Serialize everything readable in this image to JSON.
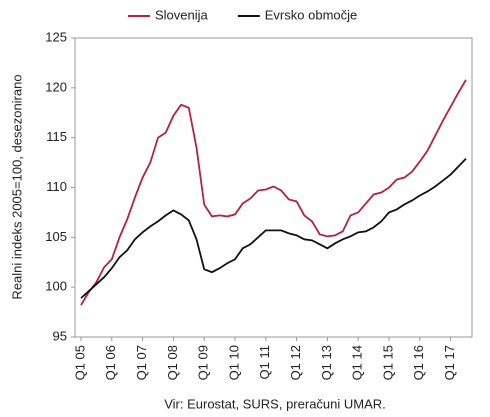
{
  "chart_data": {
    "type": "line",
    "categories": [
      "Q1 05",
      null,
      null,
      null,
      "Q1 06",
      null,
      null,
      null,
      "Q1 07",
      null,
      null,
      null,
      "Q1 08",
      null,
      null,
      null,
      "Q1 09",
      null,
      null,
      null,
      "Q1 10",
      null,
      null,
      null,
      "Q1 11",
      null,
      null,
      null,
      "Q1 12",
      null,
      null,
      null,
      "Q1 13",
      null,
      null,
      null,
      "Q1 14",
      null,
      null,
      null,
      "Q1 15",
      null,
      null,
      null,
      "Q1 16",
      null,
      null,
      null,
      "Q1 17",
      null,
      null
    ],
    "series": [
      {
        "name": "Slovenija",
        "color": "#b5213f",
        "values": [
          98.2,
          99.5,
          100.5,
          102.0,
          102.8,
          105.0,
          106.8,
          109.0,
          111.0,
          112.5,
          115.0,
          115.5,
          117.2,
          118.3,
          118.0,
          114.0,
          108.3,
          107.1,
          107.2,
          107.1,
          107.3,
          108.4,
          108.9,
          109.7,
          109.8,
          110.1,
          109.7,
          108.8,
          108.6,
          107.2,
          106.6,
          105.3,
          105.1,
          105.2,
          105.6,
          107.2,
          107.5,
          108.4,
          109.3,
          109.5,
          110.0,
          110.8,
          111.0,
          111.6,
          112.6,
          113.7,
          115.2,
          116.7,
          118.1,
          119.5,
          120.8
        ]
      },
      {
        "name": "Evrsko območje",
        "color": "#111111",
        "values": [
          98.9,
          99.6,
          100.3,
          101.0,
          101.9,
          103.0,
          103.7,
          104.8,
          105.5,
          106.1,
          106.6,
          107.2,
          107.7,
          107.3,
          106.7,
          104.8,
          101.8,
          101.5,
          101.9,
          102.4,
          102.8,
          103.9,
          104.3,
          105.0,
          105.7,
          105.7,
          105.7,
          105.4,
          105.2,
          104.8,
          104.7,
          104.3,
          103.9,
          104.4,
          104.8,
          105.1,
          105.5,
          105.6,
          106.0,
          106.6,
          107.5,
          107.8,
          108.3,
          108.7,
          109.2,
          109.6,
          110.1,
          110.7,
          111.3,
          112.1,
          112.9
        ]
      }
    ],
    "y_label": "Realni indeks 2005=100, desezonirano",
    "source": "Vir: Eurostat, SURS, preračuni UMAR.",
    "ylim": [
      95,
      125
    ],
    "yticks": [
      95,
      100,
      105,
      110,
      115,
      120,
      125
    ],
    "legend": "top"
  }
}
